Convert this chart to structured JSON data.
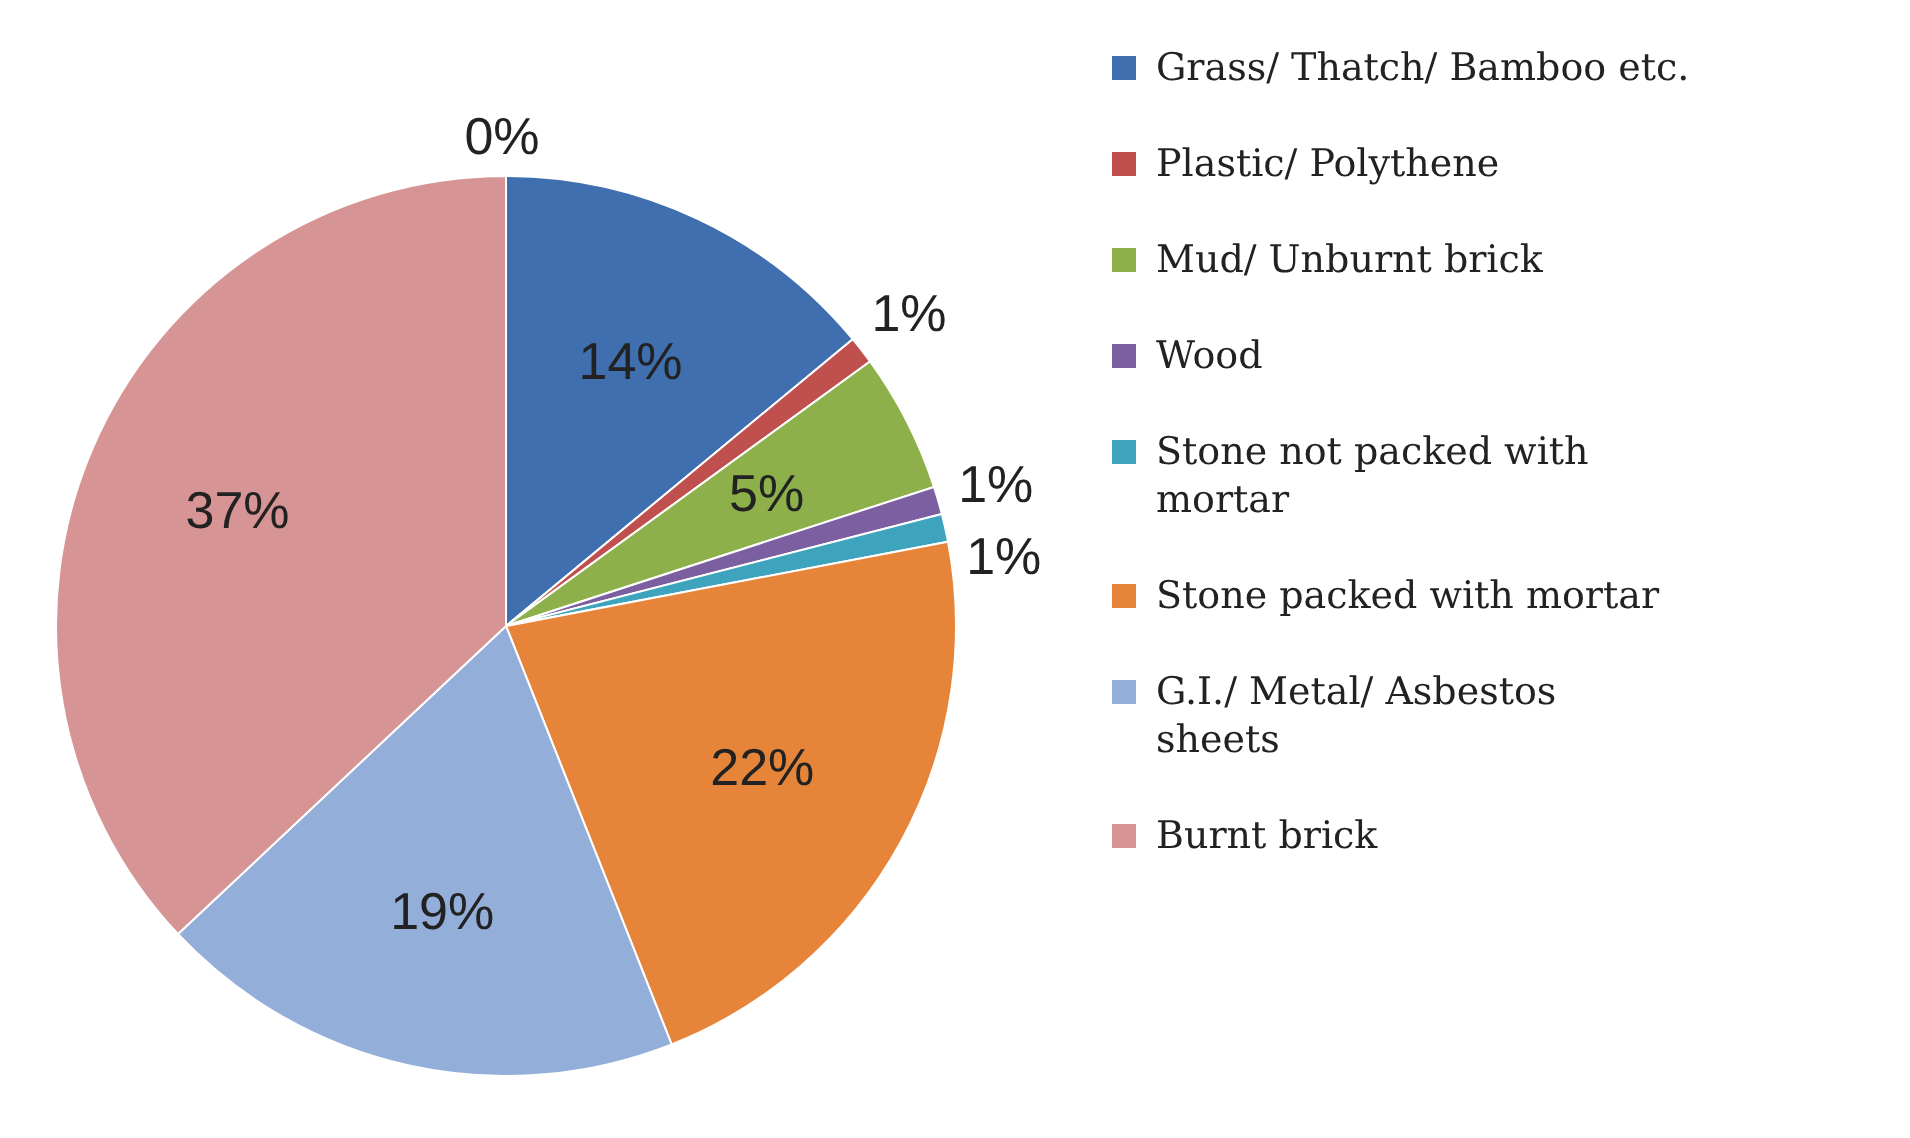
{
  "chart_data": {
    "type": "pie",
    "categories": [
      "Grass/ Thatch/ Bamboo etc.",
      "Plastic/ Polythene",
      "Mud/ Unburnt brick",
      "Wood",
      "Stone not packed with mortar",
      "Stone packed with mortar",
      "G.I./ Metal/ Asbestos sheets",
      "Burnt brick",
      null
    ],
    "values": [
      14,
      1,
      5,
      1,
      1,
      22,
      19,
      37,
      0
    ],
    "value_labels": [
      "14%",
      "1%",
      "5%",
      "1%",
      "1%",
      "22%",
      "19%",
      "37%",
      "0%"
    ],
    "colors": [
      "#3f6fae",
      "#c0504d",
      "#8db04a",
      "#7b5fa0",
      "#3ea3bd",
      "#e6853a",
      "#93aed8",
      "#d69494",
      "#a0a0a0"
    ],
    "legend": "right"
  }
}
